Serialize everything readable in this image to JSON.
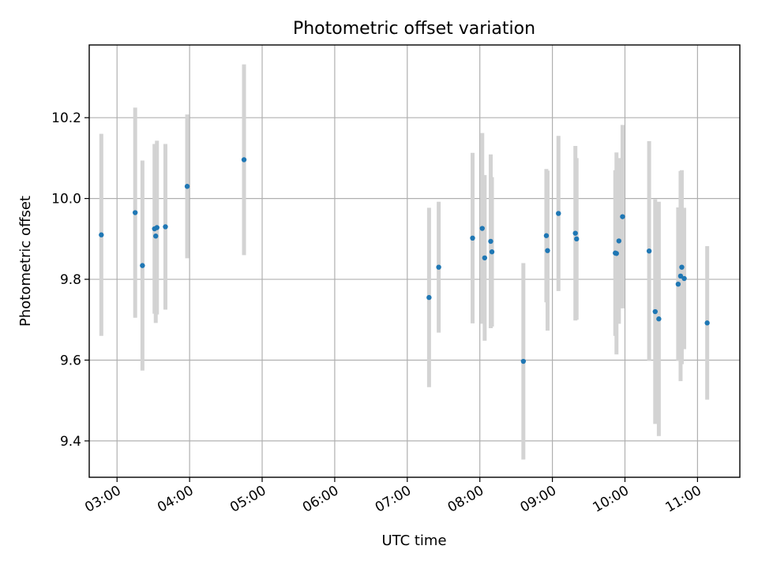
{
  "chart_data": {
    "type": "scatter",
    "title": "Photometric offset variation",
    "xlabel": "UTC time",
    "ylabel": "Photometric offset",
    "x_axis": {
      "type": "time",
      "min": "02:37",
      "max": "11:35"
    },
    "ylim": [
      9.31,
      10.38
    ],
    "xticks": [
      "03:00",
      "04:00",
      "05:00",
      "06:00",
      "07:00",
      "08:00",
      "09:00",
      "10:00",
      "11:00"
    ],
    "yticks": [
      9.4,
      9.6,
      9.8,
      10.0,
      10.2
    ],
    "grid": true,
    "colors": {
      "point": "#1f77b4",
      "errorbar": "#d3d3d3"
    },
    "points": [
      {
        "x": "02:47",
        "y": 9.91,
        "err": 0.25
      },
      {
        "x": "03:15",
        "y": 9.965,
        "err": 0.26
      },
      {
        "x": "03:21",
        "y": 9.834,
        "err": 0.26
      },
      {
        "x": "03:31",
        "y": 9.925,
        "err": 0.21
      },
      {
        "x": "03:32",
        "y": 9.907,
        "err": 0.215
      },
      {
        "x": "03:33",
        "y": 9.928,
        "err": 0.215
      },
      {
        "x": "03:40",
        "y": 9.93,
        "err": 0.205
      },
      {
        "x": "03:58",
        "y": 10.03,
        "err": 0.178
      },
      {
        "x": "04:45",
        "y": 10.096,
        "err": 0.236
      },
      {
        "x": "07:18",
        "y": 9.755,
        "err": 0.222
      },
      {
        "x": "07:26",
        "y": 9.83,
        "err": 0.162
      },
      {
        "x": "07:54",
        "y": 9.902,
        "err": 0.211
      },
      {
        "x": "08:02",
        "y": 9.926,
        "err": 0.236
      },
      {
        "x": "08:04",
        "y": 9.853,
        "err": 0.205
      },
      {
        "x": "08:09",
        "y": 9.894,
        "err": 0.215
      },
      {
        "x": "08:10",
        "y": 9.868,
        "err": 0.185
      },
      {
        "x": "08:36",
        "y": 9.597,
        "err": 0.243
      },
      {
        "x": "08:55",
        "y": 9.908,
        "err": 0.165
      },
      {
        "x": "08:56",
        "y": 9.871,
        "err": 0.198
      },
      {
        "x": "09:05",
        "y": 9.963,
        "err": 0.192
      },
      {
        "x": "09:19",
        "y": 9.914,
        "err": 0.216
      },
      {
        "x": "09:20",
        "y": 9.9,
        "err": 0.2
      },
      {
        "x": "09:52",
        "y": 9.865,
        "err": 0.205
      },
      {
        "x": "09:53",
        "y": 9.864,
        "err": 0.25
      },
      {
        "x": "09:55",
        "y": 9.895,
        "err": 0.205
      },
      {
        "x": "09:58",
        "y": 9.955,
        "err": 0.227
      },
      {
        "x": "10:20",
        "y": 9.87,
        "err": 0.272
      },
      {
        "x": "10:25",
        "y": 9.72,
        "err": 0.278
      },
      {
        "x": "10:28",
        "y": 9.702,
        "err": 0.29
      },
      {
        "x": "10:44",
        "y": 9.788,
        "err": 0.19
      },
      {
        "x": "10:46",
        "y": 9.808,
        "err": 0.26
      },
      {
        "x": "10:47",
        "y": 9.83,
        "err": 0.24
      },
      {
        "x": "10:49",
        "y": 9.802,
        "err": 0.175
      },
      {
        "x": "11:08",
        "y": 9.692,
        "err": 0.19
      }
    ]
  }
}
